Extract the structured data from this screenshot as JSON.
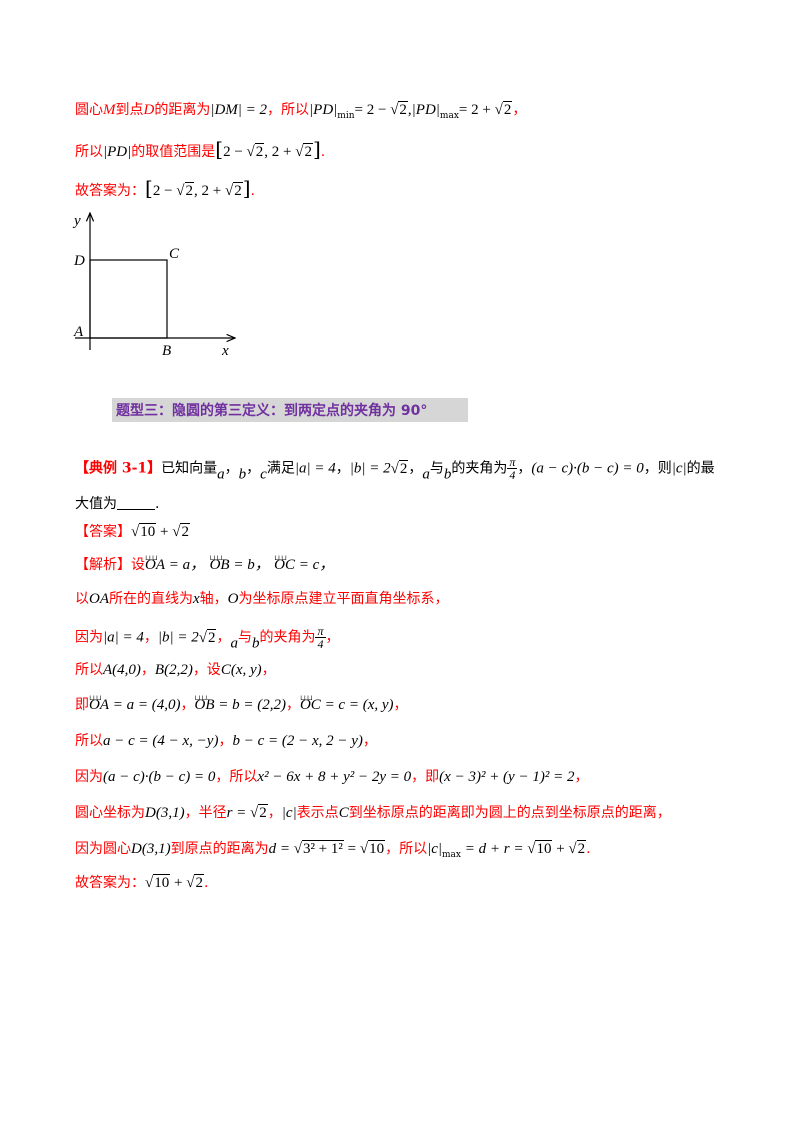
{
  "line1": {
    "t1": "圆心",
    "M": "M",
    "t2": "到点",
    "D": "D",
    "t3": "的距离为",
    "DM_eq": "|DM| = 2",
    "t4": "，所以",
    "min_expr": "|PD|",
    "min_sub": "min",
    "min_val": "= 2 − ",
    "comma": ",",
    "max_expr": "|PD|",
    "max_sub": "max",
    "max_val": "= 2 + ",
    "t5": "，"
  },
  "line2": {
    "t1": "所以",
    "pd": "|PD|",
    "t2": "的取值范围是",
    "range_a": "2 − ",
    "range_b": ", 2 + ",
    "end": "."
  },
  "line3": {
    "t1": "故答案为：",
    "range_a": "2 − ",
    "range_b": ", 2 + ",
    "end": "."
  },
  "sqrt2": "2",
  "figure": {
    "y": "y",
    "x": "x",
    "A": "A",
    "B": "B",
    "C": "C",
    "D": "D"
  },
  "heading": "题型三：隐圆的第三定义：到两定点的夹角为 90°",
  "example": {
    "label": "【典例 3-1】",
    "t1": "已知向量",
    "a": "a",
    "b": "b",
    "c": "c",
    "t2": "满足",
    "cond1": "|a| = 4",
    "cond2a": "|b| = 2",
    "t3": "与",
    "t4": "的夹角为",
    "pi": "π",
    "four": "4",
    "cond3": "(a − c)·(b − c) = 0",
    "t5": "，则",
    "abs_c": "|c|",
    "t6": "的最",
    "line2": "大值为",
    "end": "."
  },
  "answer": {
    "label": "【答案】",
    "val_a": "10",
    "plus": " + ",
    "val_b": "2"
  },
  "analysis": {
    "label": "【解析】",
    "set": "设",
    "oa": "OA",
    "ob": "OB",
    "oc": "OC",
    "eq_a": " = a，",
    "eq_b": " = b，",
    "eq_c": " = c，",
    "l2a": "以",
    "l2b": "所在的直线为",
    "l2c": "轴，",
    "O": "O",
    "l2d": "为坐标原点建立平面直角坐标系，",
    "l3a": "因为",
    "l3b": "|a| = 4",
    "l3c": "，",
    "l3d": "|b| = 2",
    "l3e": "，",
    "l3f": "与",
    "l3g": "的夹角为",
    "l4a": "所以",
    "l4b": "A(4,0)",
    "l4c": "，",
    "l4d": "B(2,2)",
    "l4e": "，设",
    "l4f": "C(x, y)",
    "l4g": "，",
    "l5a": "即",
    "l5b": " = a = (4,0)",
    "l5c": "，",
    "l5d": " = b = (2,2)",
    "l5e": "，",
    "l5f": " = c = (x, y)",
    "l5g": "，",
    "l6a": "所以",
    "l6b": "a − c = (4 − x, −y)",
    "l6c": "，",
    "l6d": "b − c = (2 − x, 2 − y)",
    "l6e": "，",
    "l7a": "因为",
    "l7b": "(a − c)·(b − c) = 0",
    "l7c": "，所以",
    "l7d": "x² − 6x + 8 + y² − 2y = 0",
    "l7e": "，即",
    "l7f": "(x − 3)² + (y − 1)² = 2",
    "l7g": "，",
    "l8a": "圆心坐标为",
    "l8b": "D(3,1)",
    "l8c": "，半径",
    "l8d": "r = ",
    "l8e": "，",
    "l8f": "|c|",
    "l8g": "表示点",
    "l8h": "C",
    "l8i": "到坐标原点的距离即为圆上的点到坐标原点的距离，",
    "l9a": "因为圆心",
    "l9b": "D(3,1)",
    "l9c": "到原点的距离为",
    "l9d": "d = ",
    "l9e": "3² + 1²",
    "l9f": " = ",
    "l9g": "10",
    "l9h": "，所以",
    "l9i": "|c|",
    "l9j": "max",
    "l9k": " = d + r = ",
    "l9l": "10",
    "l9m": " + ",
    "l9n": "2",
    "l9o": ".",
    "l10a": "故答案为：",
    "l10b": "10",
    "l10c": " + ",
    "l10d": "2",
    "l10e": "."
  }
}
